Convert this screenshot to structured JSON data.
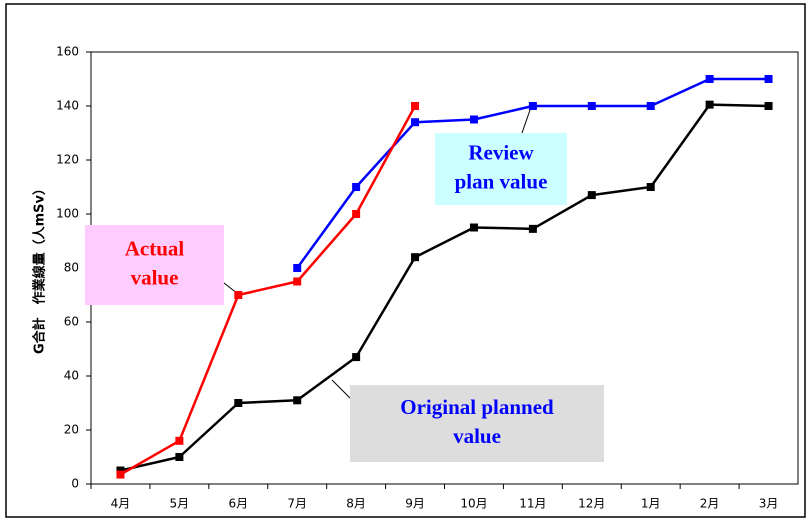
{
  "chart_data": {
    "type": "line",
    "y_axis_label": "G合計　作業線量（人mSv）",
    "categories": [
      "4月",
      "5月",
      "6月",
      "7月",
      "8月",
      "9月",
      "10月",
      "11月",
      "12月",
      "1月",
      "2月",
      "3月"
    ],
    "series": [
      {
        "name": "Original planned value",
        "color": "#000000",
        "values": [
          5,
          10,
          30,
          31,
          47,
          84,
          95,
          94.5,
          107,
          110,
          140.5,
          140
        ]
      },
      {
        "name": "Review plan value",
        "color": "#0000ff",
        "values": [
          null,
          null,
          null,
          80,
          110,
          134,
          135,
          140,
          140,
          140,
          150,
          150
        ]
      },
      {
        "name": "Actual value",
        "color": "#ff0000",
        "values": [
          3.5,
          16,
          70,
          75,
          100,
          140,
          null,
          null,
          null,
          null,
          null,
          null
        ]
      }
    ],
    "annotations": [
      {
        "lines": [
          "Actual",
          "value"
        ]
      },
      {
        "lines": [
          "Review",
          "plan value"
        ]
      },
      {
        "lines": [
          "Original planned",
          "value"
        ]
      }
    ],
    "ylim": [
      0,
      160
    ],
    "yticks": [
      0,
      20,
      40,
      60,
      80,
      100,
      120,
      140,
      160
    ],
    "grid": false
  }
}
